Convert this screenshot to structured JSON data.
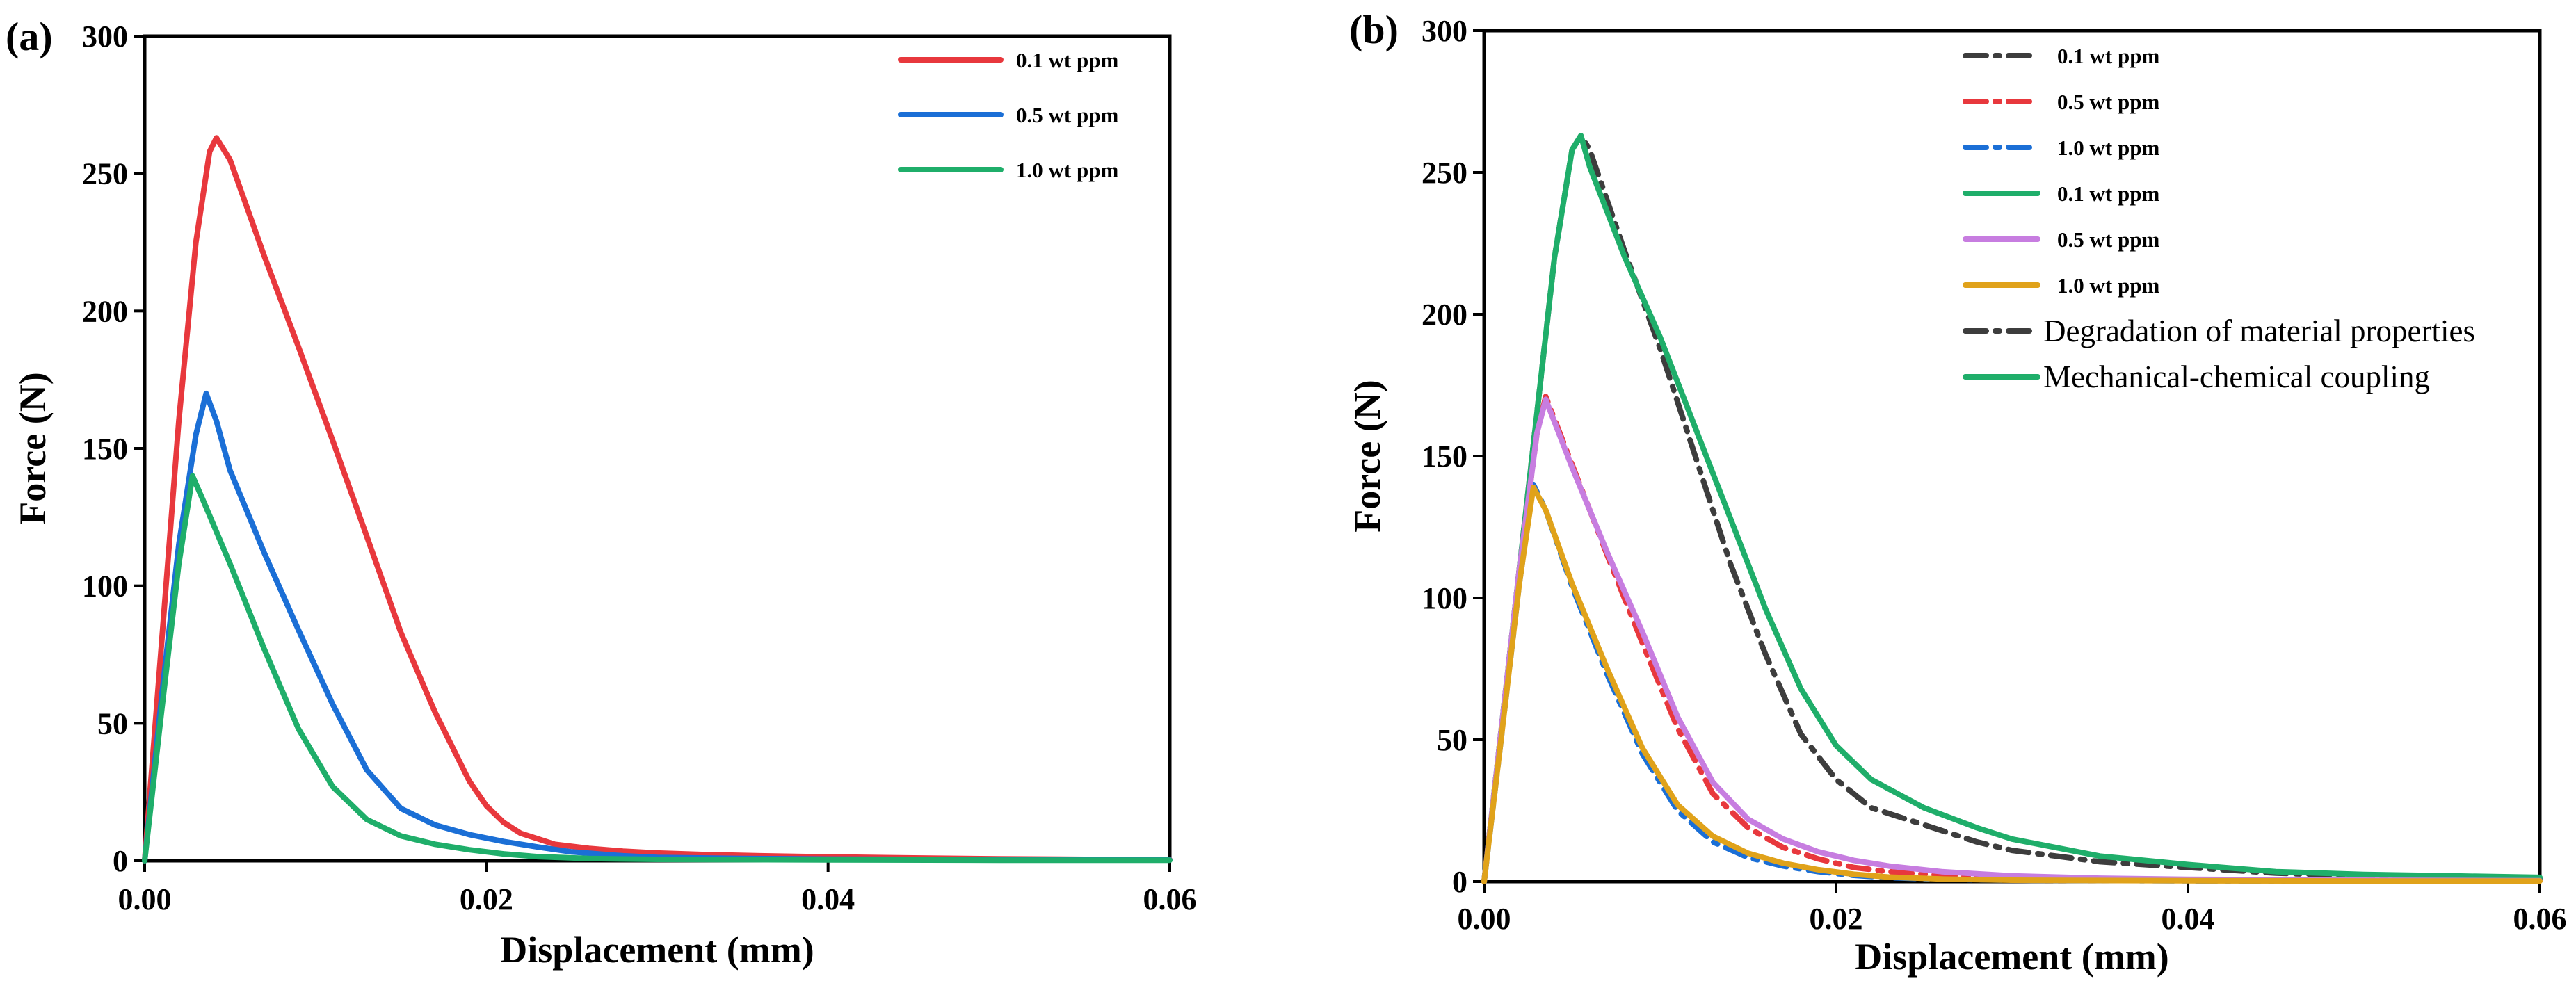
{
  "chart_data": [
    {
      "type": "line",
      "panel_label": "(a)",
      "xlabel": "Displacement (mm)",
      "ylabel": "Force (N)",
      "xlim": [
        0,
        0.06
      ],
      "ylim": [
        0,
        300
      ],
      "xticks": [
        "0.00",
        "0.02",
        "0.04",
        "0.06"
      ],
      "yticks": [
        "0",
        "50",
        "100",
        "150",
        "200",
        "250",
        "300"
      ],
      "legend_position": "top-right",
      "series": [
        {
          "name": "0.1 wt ppm",
          "color": "#e8383d",
          "style": "solid",
          "x": [
            0,
            0.001,
            0.002,
            0.003,
            0.0038,
            0.0042,
            0.005,
            0.007,
            0.009,
            0.011,
            0.013,
            0.015,
            0.017,
            0.019,
            0.02,
            0.021,
            0.022,
            0.024,
            0.026,
            0.028,
            0.03,
            0.033,
            0.036,
            0.04,
            0.045,
            0.05,
            0.055,
            0.06
          ],
          "y": [
            0,
            80,
            160,
            225,
            258,
            263,
            255,
            220,
            187,
            153,
            118,
            83,
            54,
            29,
            20,
            14,
            10,
            6,
            4.5,
            3.5,
            2.8,
            2.2,
            1.8,
            1.4,
            1,
            0.7,
            0.5,
            0.4
          ]
        },
        {
          "name": "0.5 wt ppm",
          "color": "#1b6fd6",
          "style": "solid",
          "x": [
            0,
            0.001,
            0.002,
            0.003,
            0.0036,
            0.0042,
            0.005,
            0.007,
            0.009,
            0.011,
            0.013,
            0.015,
            0.017,
            0.019,
            0.021,
            0.023,
            0.025,
            0.028,
            0.03,
            0.035,
            0.04,
            0.05,
            0.06
          ],
          "y": [
            0,
            60,
            115,
            155,
            170,
            160,
            142,
            112,
            84,
            57,
            33,
            19,
            13,
            9.5,
            7,
            5,
            3.2,
            1.8,
            1.2,
            0.8,
            0.6,
            0.4,
            0.3
          ]
        },
        {
          "name": "1.0 wt ppm",
          "color": "#1fae6a",
          "style": "solid",
          "x": [
            0,
            0.001,
            0.002,
            0.0028,
            0.0035,
            0.005,
            0.007,
            0.009,
            0.011,
            0.013,
            0.015,
            0.017,
            0.019,
            0.021,
            0.023,
            0.026,
            0.03,
            0.04,
            0.05,
            0.06
          ],
          "y": [
            0,
            55,
            108,
            140,
            130,
            108,
            77,
            48,
            27,
            15,
            9,
            6,
            4,
            2.5,
            1.5,
            0.8,
            0.5,
            0.3,
            0.2,
            0.2
          ]
        }
      ]
    },
    {
      "type": "line",
      "panel_label": "(b)",
      "xlabel": "Displacement (mm)",
      "ylabel": "Force (N)",
      "xlim": [
        0,
        0.06
      ],
      "ylim": [
        0,
        300
      ],
      "xticks": [
        "0.00",
        "0.02",
        "0.04",
        "0.06"
      ],
      "yticks": [
        "0",
        "50",
        "100",
        "150",
        "200",
        "250",
        "300"
      ],
      "legend_position": "top-right",
      "series": [
        {
          "name": "0.1 wt ppm",
          "color": "#3d3d3d",
          "style": "dashdot",
          "x": [
            0,
            0.001,
            0.002,
            0.003,
            0.004,
            0.005,
            0.0055,
            0.006,
            0.008,
            0.01,
            0.012,
            0.014,
            0.016,
            0.018,
            0.02,
            0.022,
            0.025,
            0.028,
            0.03,
            0.035,
            0.04,
            0.045,
            0.05,
            0.055,
            0.06
          ],
          "y": [
            0,
            55,
            110,
            165,
            220,
            258,
            263,
            258,
            222,
            188,
            150,
            112,
            80,
            52,
            36,
            26,
            20,
            14,
            11,
            7,
            5,
            3,
            2,
            1.5,
            1
          ]
        },
        {
          "name": "0.5 wt ppm",
          "color": "#e8383d",
          "style": "dashdot",
          "x": [
            0,
            0.001,
            0.002,
            0.003,
            0.0035,
            0.004,
            0.005,
            0.007,
            0.009,
            0.011,
            0.013,
            0.015,
            0.017,
            0.019,
            0.021,
            0.023,
            0.026,
            0.03,
            0.035,
            0.04,
            0.05,
            0.06
          ],
          "y": [
            0,
            55,
            110,
            158,
            171,
            163,
            147,
            115,
            84,
            54,
            31,
            19,
            12,
            8,
            5,
            3.5,
            2.2,
            1.2,
            0.8,
            0.6,
            0.4,
            0.3
          ]
        },
        {
          "name": "1.0 wt ppm",
          "color": "#1b6fd6",
          "style": "dashdot",
          "x": [
            0,
            0.001,
            0.002,
            0.0028,
            0.0035,
            0.005,
            0.007,
            0.009,
            0.011,
            0.013,
            0.015,
            0.017,
            0.019,
            0.021,
            0.023,
            0.026,
            0.03,
            0.04,
            0.05,
            0.06
          ],
          "y": [
            0,
            52,
            105,
            140,
            131,
            104,
            73,
            45,
            25,
            14,
            8.5,
            5.5,
            3.5,
            2.2,
            1.4,
            0.8,
            0.5,
            0.3,
            0.2,
            0.2
          ]
        },
        {
          "name": "0.1 wt ppm",
          "color": "#1fae6a",
          "style": "solid",
          "x": [
            0,
            0.001,
            0.002,
            0.003,
            0.004,
            0.005,
            0.0055,
            0.006,
            0.008,
            0.01,
            0.012,
            0.014,
            0.016,
            0.018,
            0.02,
            0.022,
            0.025,
            0.028,
            0.03,
            0.035,
            0.04,
            0.045,
            0.05,
            0.055,
            0.06
          ],
          "y": [
            0,
            55,
            110,
            165,
            220,
            258,
            263,
            252,
            220,
            192,
            160,
            128,
            96,
            68,
            48,
            36,
            26,
            19,
            15,
            9,
            6,
            3.5,
            2.5,
            2,
            1.5
          ]
        },
        {
          "name": "0.5 wt ppm",
          "color": "#c77de0",
          "style": "solid",
          "x": [
            0,
            0.001,
            0.002,
            0.003,
            0.0035,
            0.004,
            0.005,
            0.007,
            0.009,
            0.011,
            0.013,
            0.015,
            0.017,
            0.019,
            0.021,
            0.023,
            0.026,
            0.03,
            0.035,
            0.04,
            0.05,
            0.06
          ],
          "y": [
            0,
            55,
            110,
            158,
            170,
            162,
            146,
            116,
            88,
            58,
            35,
            22,
            15,
            10.5,
            7.5,
            5.5,
            3.5,
            2,
            1.2,
            0.8,
            0.5,
            0.3
          ]
        },
        {
          "name": "1.0 wt ppm",
          "color": "#e0a21a",
          "style": "solid",
          "x": [
            0,
            0.001,
            0.002,
            0.0028,
            0.0035,
            0.005,
            0.007,
            0.009,
            0.011,
            0.013,
            0.015,
            0.017,
            0.019,
            0.021,
            0.023,
            0.026,
            0.03,
            0.04,
            0.05,
            0.06
          ],
          "y": [
            0,
            52,
            105,
            139,
            131,
            105,
            75,
            47,
            27,
            16,
            10,
            6.5,
            4.2,
            2.6,
            1.6,
            0.9,
            0.5,
            0.3,
            0.2,
            0.2
          ]
        }
      ],
      "legend_extra": [
        {
          "name": "Degradation of material properties",
          "color": "#3d3d3d",
          "style": "dashdot"
        },
        {
          "name": "Mechanical-chemical coupling",
          "color": "#1fae6a",
          "style": "solid"
        }
      ]
    }
  ]
}
